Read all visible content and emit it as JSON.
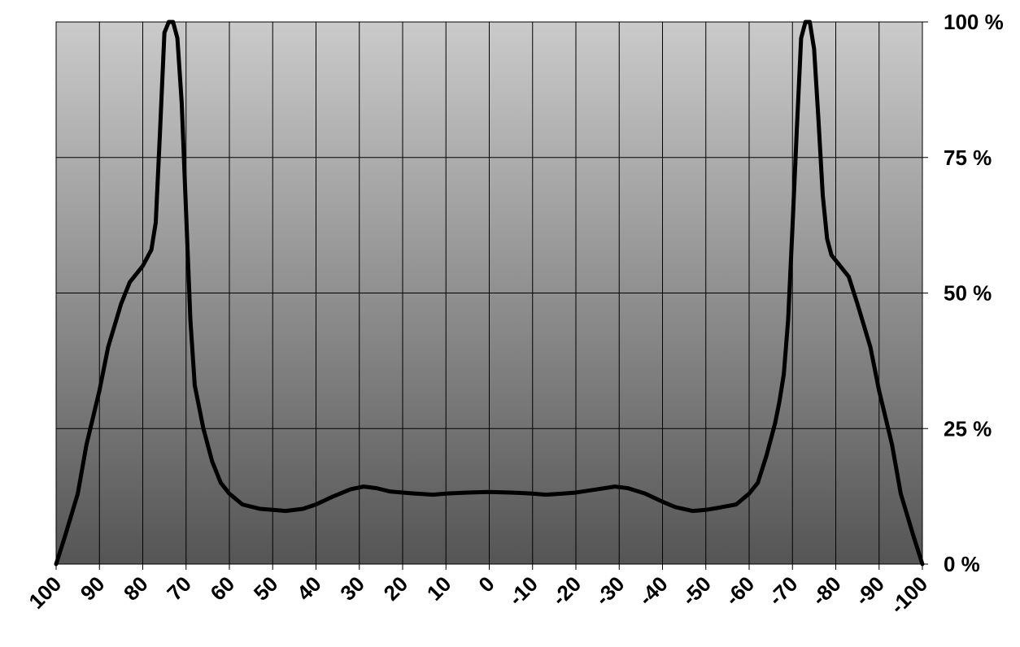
{
  "chart_data": {
    "type": "line",
    "x": [
      100,
      98,
      95,
      93,
      90,
      88,
      85,
      83,
      80,
      78,
      77,
      76,
      75,
      74,
      73,
      72,
      71,
      70,
      69,
      68,
      66,
      64,
      62,
      60,
      57,
      53,
      50,
      47,
      43,
      40,
      36,
      32,
      29,
      26,
      23,
      20,
      17,
      13,
      10,
      5,
      0,
      -5,
      -10,
      -13,
      -17,
      -20,
      -25,
      -29,
      -32,
      -36,
      -40,
      -43,
      -47,
      -50,
      -53,
      -57,
      -60,
      -62,
      -64,
      -66,
      -67,
      -68,
      -69,
      -70,
      -71,
      -72,
      -73,
      -74,
      -75,
      -76,
      -77,
      -78,
      -79,
      -80,
      -83,
      -85,
      -88,
      -90,
      -93,
      -95,
      -98,
      -100
    ],
    "values": [
      0,
      5,
      13,
      22,
      32,
      40,
      48,
      52,
      55,
      58,
      63,
      80,
      98,
      100,
      100,
      97,
      85,
      65,
      45,
      33,
      25,
      19,
      15,
      13,
      11,
      10.2,
      10,
      9.8,
      10.2,
      11,
      12.5,
      13.8,
      14.3,
      14,
      13.4,
      13.2,
      13,
      12.8,
      13,
      13.2,
      13.3,
      13.2,
      13,
      12.8,
      13,
      13.2,
      13.8,
      14.3,
      14,
      13,
      11.5,
      10.5,
      9.8,
      10,
      10.4,
      11,
      13,
      15,
      20,
      26,
      30,
      35,
      45,
      62,
      80,
      97,
      100,
      100,
      95,
      82,
      68,
      60,
      57,
      56,
      53,
      48,
      40,
      32,
      22,
      13,
      5,
      0
    ],
    "color": "#000000",
    "xlim": [
      100,
      -100
    ],
    "xticks": [
      100,
      90,
      80,
      70,
      60,
      50,
      40,
      30,
      20,
      10,
      0,
      -10,
      -20,
      -30,
      -40,
      -50,
      -60,
      -70,
      -80,
      -90,
      -100
    ],
    "ylim": [
      0,
      100
    ],
    "yticks": [
      {
        "value": 0,
        "label": "0 %"
      },
      {
        "value": 25,
        "label": "25 %"
      },
      {
        "value": 50,
        "label": "50 %"
      },
      {
        "value": 75,
        "label": "75 %"
      },
      {
        "value": 100,
        "label": "100 %"
      }
    ],
    "grid": true
  }
}
